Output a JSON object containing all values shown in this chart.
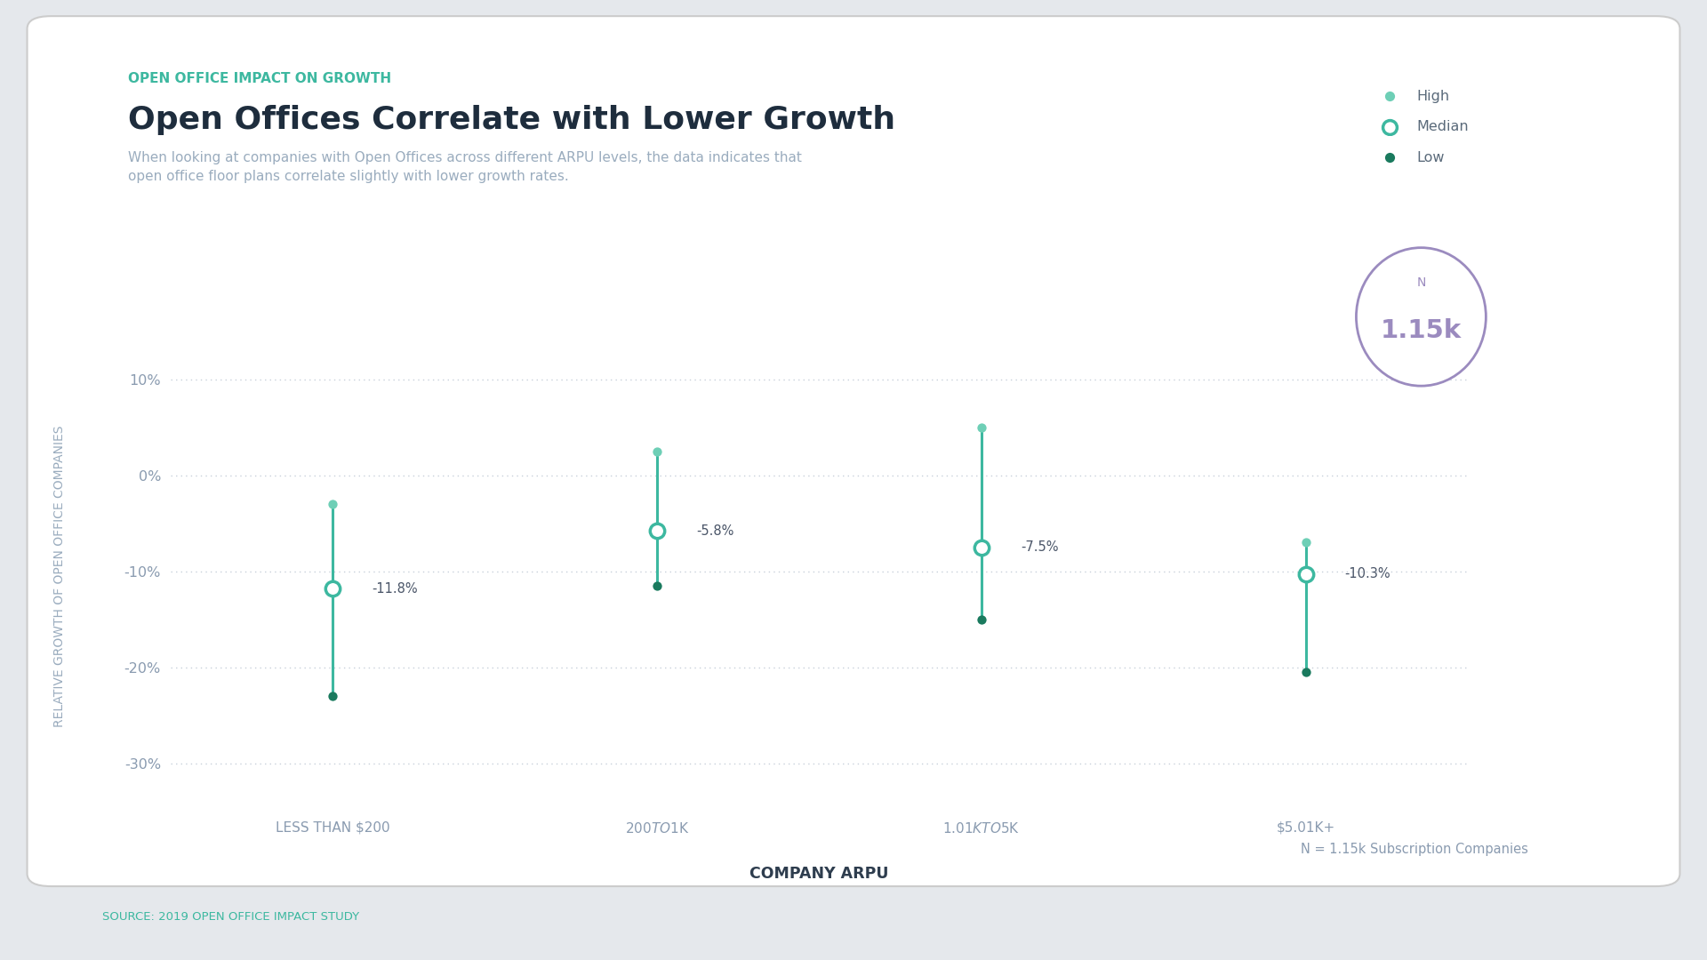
{
  "supertitle": "OPEN OFFICE IMPACT ON GROWTH",
  "title": "Open Offices Correlate with Lower Growth",
  "subtitle_line1": "When looking at companies with Open Offices across different ARPU levels, the data indicates that",
  "subtitle_line2": "open office floor plans correlate slightly with lower growth rates.",
  "xlabel": "COMPANY ARPU",
  "ylabel": "RELATIVE GROWTH OF OPEN OFFICE COMPANIES",
  "source": "SOURCE: 2019 OPEN OFFICE IMPACT STUDY",
  "n_note": "N = 1.15k Subscription Companies",
  "categories": [
    "LESS THAN $200",
    "$200 TO $1K",
    "$1.01K TO $5K",
    "$5.01K+"
  ],
  "high_values": [
    -3.0,
    2.5,
    5.0,
    -7.0
  ],
  "median_values": [
    -11.8,
    -5.8,
    -7.5,
    -10.3
  ],
  "low_values": [
    -23.0,
    -11.5,
    -15.0,
    -20.5
  ],
  "median_labels": [
    "-11.8%",
    "-5.8%",
    "-7.5%",
    "-10.3%"
  ],
  "ylim": [
    -35,
    14
  ],
  "yticks": [
    10,
    0,
    -10,
    -20,
    -30
  ],
  "ytick_labels": [
    "10%",
    "0%",
    "-10%",
    "-20%",
    "-30%"
  ],
  "color_high": "#6ecfb6",
  "color_median_fill": "#ffffff",
  "color_median_edge": "#3db8a0",
  "color_low": "#1a7a5e",
  "color_line": "#3db8a0",
  "color_supertitle": "#3db8a0",
  "color_title": "#1e2d3d",
  "color_subtitle": "#9aacbe",
  "color_ylabel": "#9aacbe",
  "color_xlabel": "#2e3d4e",
  "color_source": "#3db8a0",
  "color_grid": "#c8d0da",
  "color_bg": "#ffffff",
  "color_outer_bg": "#e5e8ec",
  "color_n_border": "#9b8bbf",
  "color_n_text": "#9b8bbf",
  "color_axis_labels": "#8a9bb0",
  "legend_labels": [
    "High",
    "Median",
    "Low"
  ]
}
